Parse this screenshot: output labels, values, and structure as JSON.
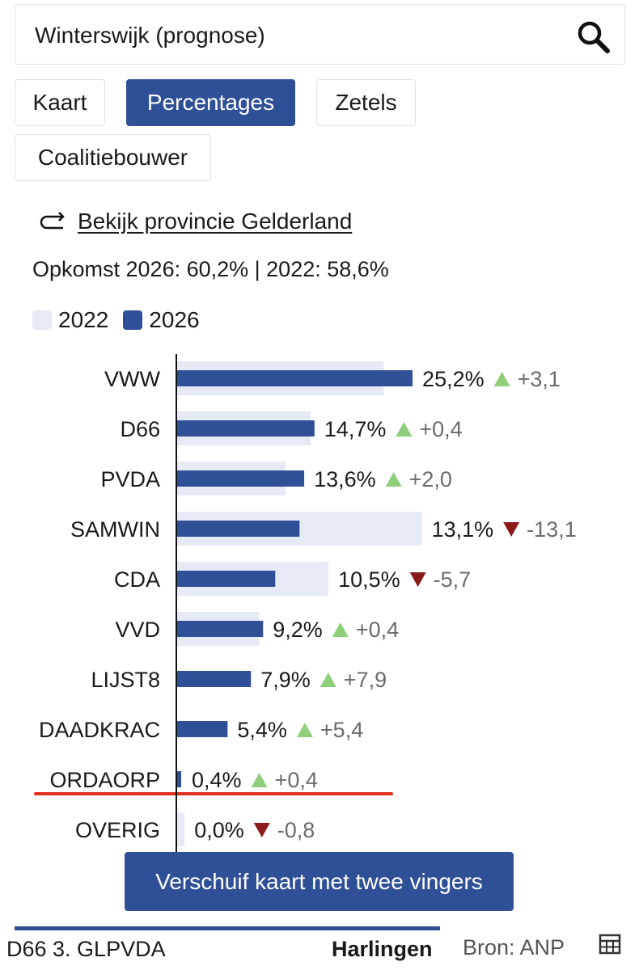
{
  "search": {
    "value": "Winterswijk (prognose)",
    "icon": "search-icon"
  },
  "tabs": [
    {
      "label": "Kaart",
      "active": false
    },
    {
      "label": "Percentages",
      "active": true
    },
    {
      "label": "Zetels",
      "active": false
    },
    {
      "label": "Coalitiebouwer",
      "active": false
    }
  ],
  "province_link": {
    "label": "Bekijk provincie Gelderland",
    "icon": "return-arrow-icon"
  },
  "turnout": "Opkomst 2026: 60,2% | 2022: 58,6%",
  "legend": {
    "label_2022": "2022",
    "label_2026": "2026"
  },
  "colors": {
    "bar_2026": "#2f4f96",
    "bar_2022": "#e6eaf4",
    "up": "#8fcf7a",
    "down": "#8b1a1a",
    "highlight_line": "#e0301e"
  },
  "chart_data": {
    "type": "bar",
    "orientation": "horizontal",
    "categories": [
      "VWW",
      "D66",
      "PVDA",
      "SAMWIN",
      "CDA",
      "VVD",
      "LIJST8",
      "DAADKRAC",
      "ORDAORP",
      "OVERIG"
    ],
    "series": [
      {
        "name": "2022",
        "values": [
          22.1,
          14.3,
          11.6,
          26.2,
          16.2,
          8.8,
          0.0,
          0.0,
          0.0,
          0.8
        ]
      },
      {
        "name": "2026",
        "values": [
          25.2,
          14.7,
          13.6,
          13.1,
          10.5,
          9.2,
          7.9,
          5.4,
          0.4,
          0.0
        ]
      }
    ],
    "value_labels": [
      "25,2%",
      "14,7%",
      "13,6%",
      "13,1%",
      "10,5%",
      "9,2%",
      "7,9%",
      "5,4%",
      "0,4%",
      "0,0%"
    ],
    "change_labels": [
      "+3,1",
      "+0,4",
      "+2,0",
      "-13,1",
      "-5,7",
      "+0,4",
      "+7,9",
      "+5,4",
      "+0,4",
      "-0,8"
    ],
    "change_direction": [
      "up",
      "up",
      "up",
      "down",
      "down",
      "up",
      "up",
      "up",
      "up",
      "down"
    ],
    "highlighted_category": "ORDAORP"
  },
  "map_hint": "Verschuif kaart met twee vingers",
  "footer": {
    "ticker_left": "D66  3. GLPVDA",
    "ticker_right": "Harlingen",
    "source": "Bron: ANP",
    "table_icon": "table-icon"
  }
}
